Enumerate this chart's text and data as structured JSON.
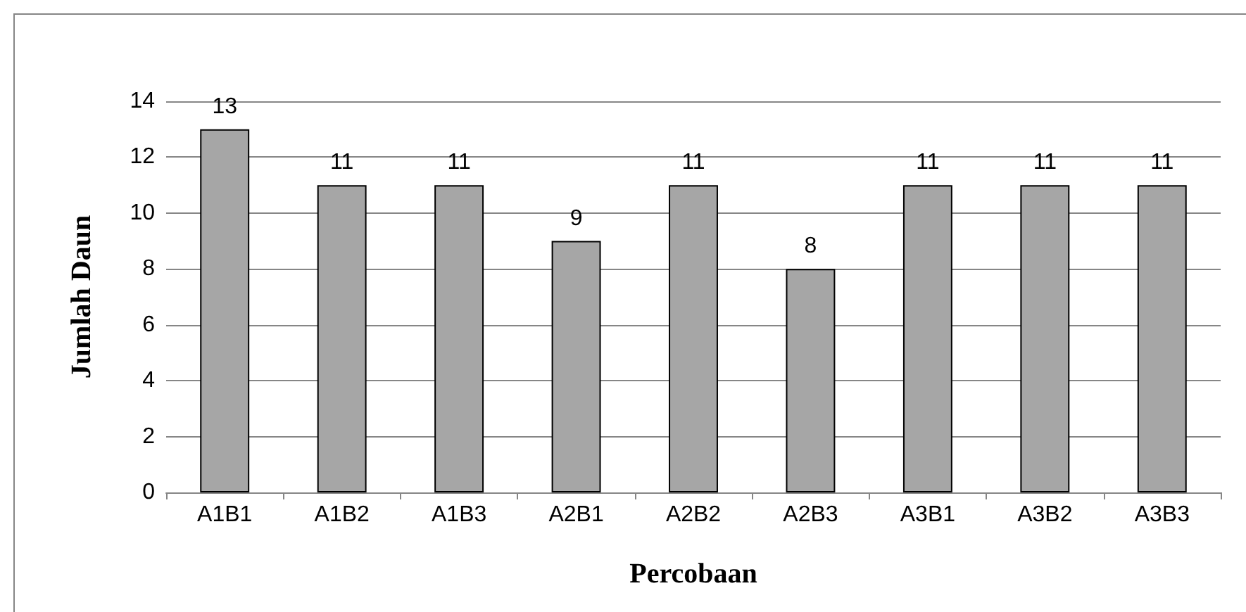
{
  "chart_data": {
    "type": "bar",
    "xlabel": "Percobaan",
    "ylabel": "Jumlah Daun",
    "categories": [
      "A1B1",
      "A1B2",
      "A1B3",
      "A2B1",
      "A2B2",
      "A2B3",
      "A3B1",
      "A3B2",
      "A3B3"
    ],
    "values": [
      13,
      11,
      11,
      9,
      11,
      8,
      11,
      11,
      11
    ],
    "color": "#a6a6a6",
    "ylim": [
      0,
      14
    ],
    "yticks": [
      0,
      2,
      4,
      6,
      8,
      10,
      12,
      14
    ],
    "grid": "y",
    "data_labels": true
  }
}
